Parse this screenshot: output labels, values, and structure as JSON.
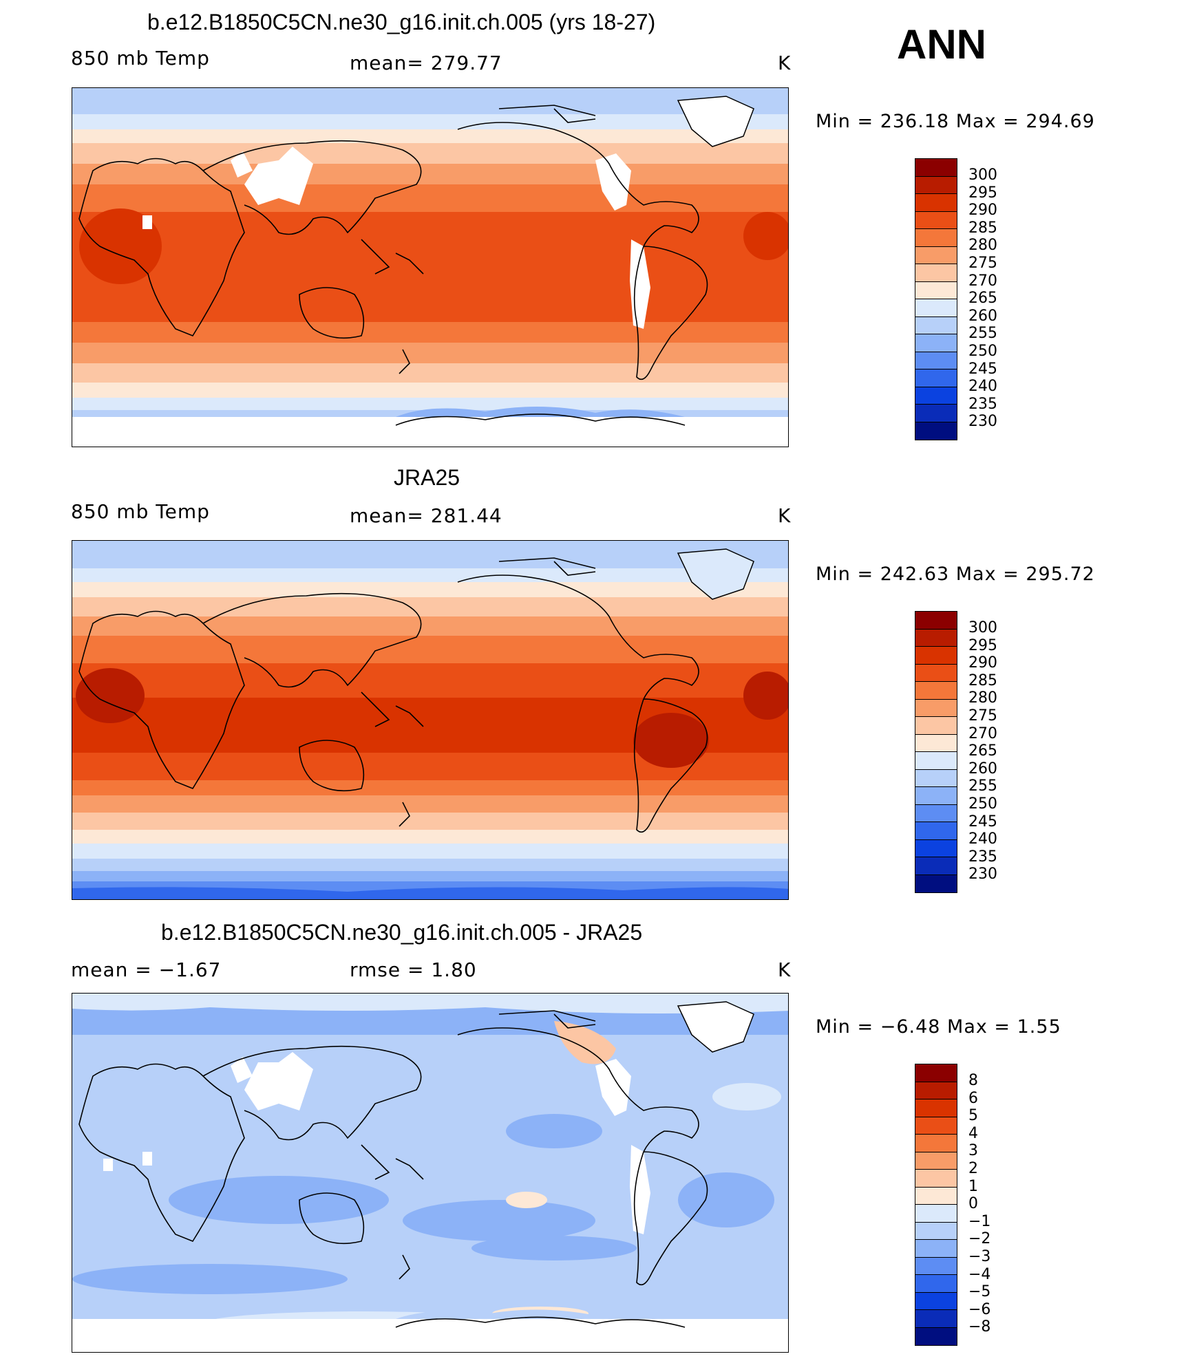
{
  "season": "ANN",
  "panels": [
    {
      "title": "b.e12.B1850C5CN.ne30_g16.init.ch.005 (yrs 18-27)",
      "left_label": "850 mb Temp",
      "center_label": "mean=  279.77",
      "units": "K",
      "minmax": "Min  =  236.18  Max  =  294.69"
    },
    {
      "title": "JRA25",
      "left_label": "850 mb Temp",
      "center_label": "mean=  281.44",
      "units": "K",
      "minmax": "Min  =  242.63  Max  =  295.72"
    },
    {
      "title": "b.e12.B1850C5CN.ne30_g16.init.ch.005 - JRA25",
      "left_label": "mean  =    −1.67",
      "center_label": "rmse  =     1.80",
      "units": "K",
      "minmax": "Min  =    −6.48  Max  =     1.55"
    }
  ],
  "colorbar_abs": {
    "levels": [
      "300",
      "295",
      "290",
      "285",
      "280",
      "275",
      "270",
      "265",
      "260",
      "255",
      "250",
      "245",
      "240",
      "235",
      "230"
    ],
    "colors": [
      "#8b0000",
      "#b81c00",
      "#d93300",
      "#ea4f16",
      "#f4773a",
      "#f89c68",
      "#fcc6a4",
      "#fde8d6",
      "#dbe9fb",
      "#b7d0f9",
      "#8cb2f7",
      "#5d8df3",
      "#3067ec",
      "#0b42e0",
      "#0a2cb8",
      "#000e80"
    ]
  },
  "colorbar_diff": {
    "levels": [
      "8",
      "6",
      "5",
      "4",
      "3",
      "2",
      "1",
      "0",
      "−1",
      "−2",
      "−3",
      "−4",
      "−5",
      "−6",
      "−8"
    ],
    "colors": [
      "#8b0000",
      "#b81c00",
      "#d93300",
      "#ea4f16",
      "#f4773a",
      "#f89c68",
      "#fcc6a4",
      "#fde8d6",
      "#dbe9fb",
      "#b7d0f9",
      "#8cb2f7",
      "#5d8df3",
      "#3067ec",
      "#0b42e0",
      "#0a2cb8",
      "#000e80"
    ]
  }
}
